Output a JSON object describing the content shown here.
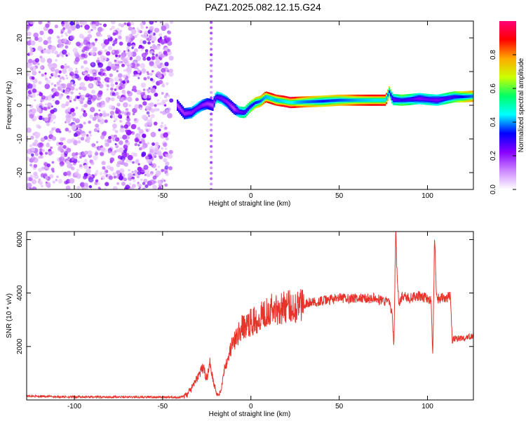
{
  "title": "PAZ1.2025.082.12.15.G24",
  "chart_data": [
    {
      "type": "heatmap",
      "xlabel": "Height of straight line (km)",
      "ylabel": "Frequency (Hz)",
      "xlim": [
        -127,
        126
      ],
      "ylim": [
        -25,
        25
      ],
      "xticks": [
        -100,
        -50,
        0,
        50,
        100
      ],
      "yticks": [
        -20,
        -10,
        0,
        10,
        20
      ],
      "colorbar": {
        "label": "Normalized spectral amplitude",
        "range": [
          0,
          1
        ],
        "ticks": [
          "0.0",
          "0.2",
          "0.4",
          "0.6",
          "0.8"
        ],
        "colors": [
          "#ffffff",
          "#cc88ff",
          "#8800ff",
          "#0000ff",
          "#00ffff",
          "#00ff66",
          "#ccff00",
          "#ffaa00",
          "#ff0000",
          "#ff0077"
        ]
      },
      "ridge": {
        "x": [
          -42,
          -38,
          -34,
          -31,
          -28,
          -25,
          -22,
          -20,
          -17,
          -14,
          -12,
          -10,
          -7,
          -4,
          -1,
          2,
          5,
          8,
          11,
          14,
          18,
          22,
          26,
          30,
          40,
          50,
          60,
          70,
          76,
          78,
          80,
          85,
          90,
          95,
          100,
          105,
          110,
          115,
          120,
          126
        ],
        "y": [
          0,
          -2.5,
          -2.2,
          -1,
          0,
          0.5,
          0,
          2.5,
          2,
          1,
          0,
          -1,
          -2,
          -2.2,
          -0.5,
          0.7,
          1.2,
          2.5,
          2,
          1.5,
          1.2,
          0.8,
          0.9,
          1,
          1.2,
          1.5,
          1.5,
          1.5,
          1.5,
          4,
          1.7,
          1.5,
          1.7,
          2,
          1.7,
          1.5,
          2,
          2.5,
          2.5,
          2.7
        ],
        "amplitude": [
          0.3,
          0.35,
          0.4,
          0.45,
          0.4,
          0.35,
          0.3,
          0.5,
          0.45,
          0.4,
          0.35,
          0.3,
          0.5,
          0.55,
          0.6,
          0.7,
          0.75,
          0.85,
          0.9,
          0.85,
          0.9,
          0.95,
          0.85,
          0.8,
          0.7,
          0.75,
          0.85,
          0.9,
          0.9,
          0.7,
          0.5,
          0.6,
          0.55,
          0.45,
          0.5,
          0.45,
          0.55,
          0.6,
          0.7,
          0.8
        ]
      }
    },
    {
      "type": "line",
      "xlabel": "Height of straight line (km)",
      "ylabel": "SNR (10 * v/v)",
      "xlim": [
        -127,
        126
      ],
      "ylim": [
        0,
        6300
      ],
      "xticks": [
        -100,
        -50,
        0,
        50,
        100
      ],
      "yticks": [
        2000,
        4000,
        6000
      ],
      "color": "#e8332a",
      "series": [
        {
          "x": [
            -127,
            -110,
            -90,
            -70,
            -50,
            -40,
            -36,
            -33,
            -30,
            -27,
            -25,
            -23,
            -21,
            -19,
            -17,
            -15,
            -13,
            -11,
            -9,
            -7,
            -5,
            -2,
            0,
            3,
            6,
            10,
            15,
            20,
            25,
            30,
            40,
            50,
            60,
            70,
            75,
            78,
            80,
            81,
            82,
            83,
            84,
            85,
            86,
            90,
            95,
            100,
            102,
            103,
            104,
            105,
            108,
            112,
            113,
            114,
            115,
            120,
            126
          ],
          "y": [
            150,
            120,
            110,
            110,
            100,
            100,
            200,
            500,
            900,
            1200,
            800,
            1400,
            600,
            200,
            300,
            1200,
            1600,
            2000,
            2200,
            2500,
            2700,
            2800,
            2900,
            3000,
            3200,
            3400,
            3400,
            3500,
            3500,
            3600,
            3700,
            3800,
            3800,
            3800,
            3700,
            3700,
            3200,
            2000,
            6300,
            4200,
            3600,
            3800,
            3900,
            3800,
            3900,
            3800,
            3700,
            1600,
            6200,
            3800,
            3800,
            3850,
            3900,
            2200,
            2300,
            2300,
            2400
          ]
        }
      ]
    }
  ]
}
